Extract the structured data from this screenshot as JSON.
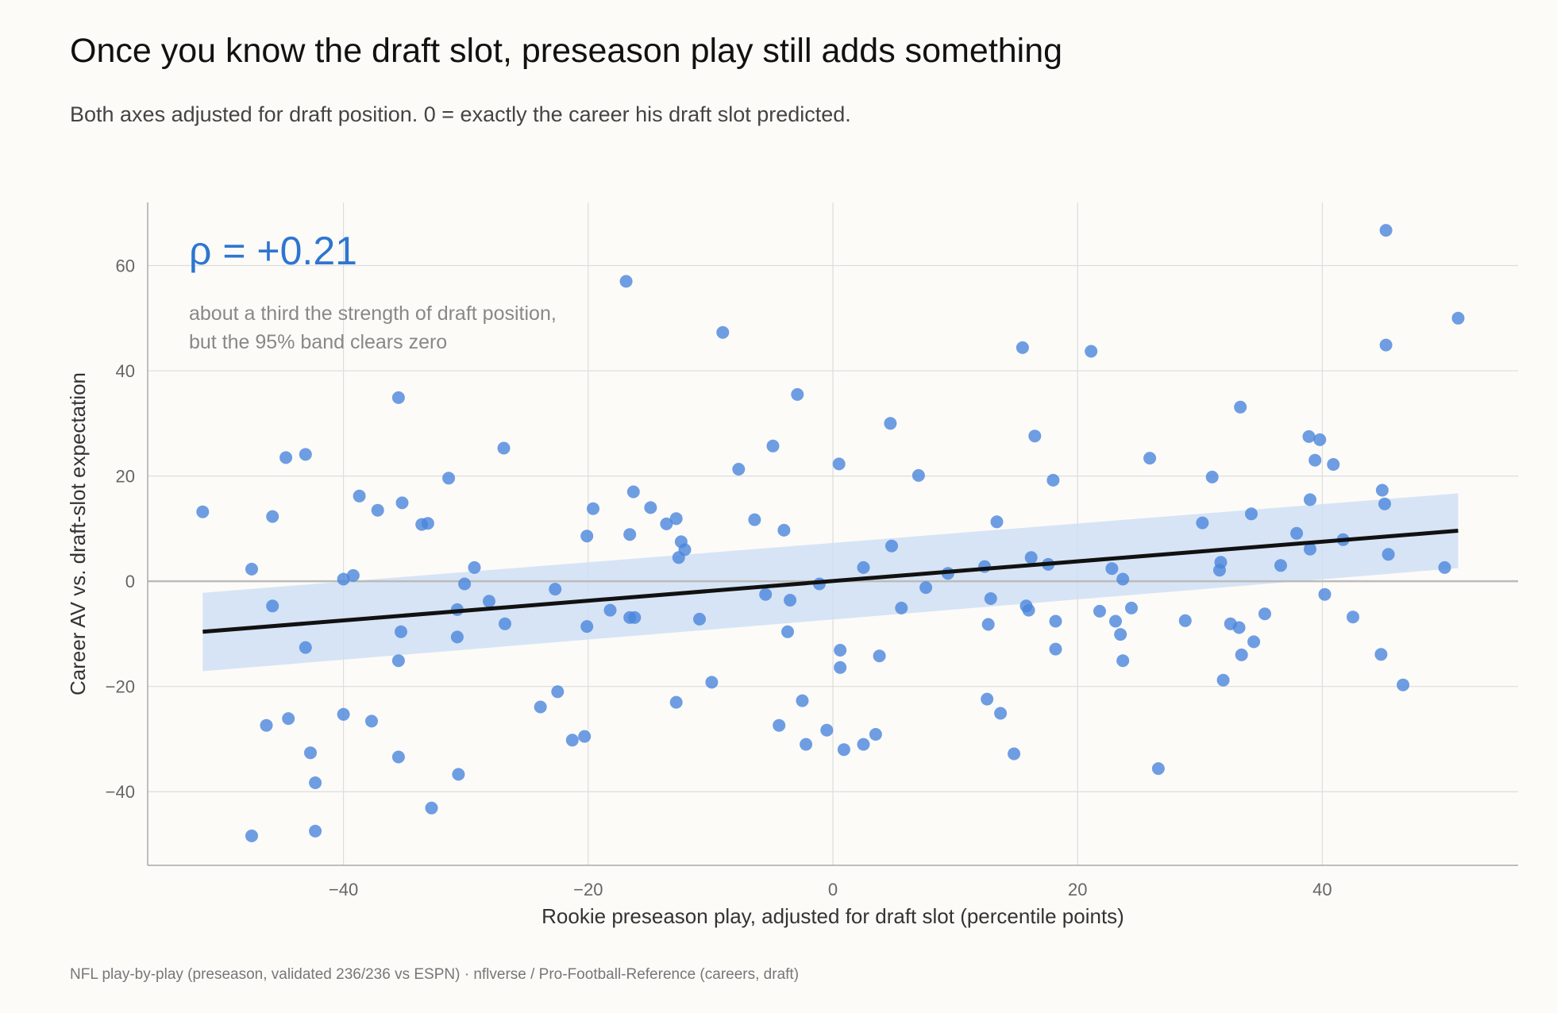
{
  "title": "Once you know the draft slot, preseason play still adds something",
  "subtitle": "Both axes adjusted for draft position. 0 = exactly the career his draft slot predicted.",
  "footer": "NFL play-by-play (preseason, validated 236/236 vs ESPN)  ·  nflverse / Pro-Football-Reference (careers, draft)",
  "colors": {
    "point": "#4a86dc",
    "band": "#cddff4",
    "fit_line": "#111111",
    "accent_text": "#2e75d0",
    "grid": "#dddddd",
    "zero_line": "#bbbbbb"
  },
  "chart_data": {
    "type": "scatter",
    "xlabel": "Rookie preseason play, adjusted for draft slot (percentile points)",
    "ylabel": "Career AV vs. draft-slot expectation",
    "xlim": [
      -56,
      56
    ],
    "ylim": [
      -54,
      72
    ],
    "xticks": [
      -40,
      -20,
      0,
      20,
      40
    ],
    "yticks": [
      -40,
      -20,
      0,
      20,
      40,
      60
    ],
    "xtick_labels": [
      "−40",
      "−20",
      "0",
      "20",
      "40"
    ],
    "ytick_labels": [
      "−40",
      "−20",
      "0",
      "20",
      "40",
      "60"
    ],
    "grid": true,
    "annotation": {
      "stat": "ρ = +0.21",
      "note_line1": "about a third the strength of draft position,",
      "note_line2": "but the 95% band clears zero"
    },
    "fit": {
      "x": [
        -51.5,
        51.1
      ],
      "y": [
        -9.6,
        9.6
      ],
      "band_upper": [
        -2.2,
        16.7
      ],
      "band_lower": [
        -17.1,
        2.5
      ]
    },
    "points": [
      [
        -51.5,
        13.2
      ],
      [
        -47.5,
        2.3
      ],
      [
        -47.5,
        -48.4
      ],
      [
        -46.3,
        -27.4
      ],
      [
        -45.8,
        12.3
      ],
      [
        -45.8,
        -4.7
      ],
      [
        -44.7,
        23.5
      ],
      [
        -44.5,
        -26.1
      ],
      [
        -43.1,
        24.1
      ],
      [
        -43.1,
        -12.6
      ],
      [
        -42.7,
        -32.6
      ],
      [
        -42.3,
        -38.3
      ],
      [
        -42.3,
        -47.5
      ],
      [
        -40.0,
        0.4
      ],
      [
        -40.0,
        -25.3
      ],
      [
        -39.2,
        1.1
      ],
      [
        -38.7,
        16.2
      ],
      [
        -37.7,
        -26.6
      ],
      [
        -37.2,
        13.5
      ],
      [
        -35.5,
        34.9
      ],
      [
        -35.5,
        -15.1
      ],
      [
        -35.5,
        -33.4
      ],
      [
        -35.3,
        -9.6
      ],
      [
        -35.2,
        14.9
      ],
      [
        -33.6,
        10.8
      ],
      [
        -33.1,
        11.0
      ],
      [
        -32.8,
        -43.1
      ],
      [
        -31.4,
        19.6
      ],
      [
        -30.7,
        -5.4
      ],
      [
        -30.7,
        -10.6
      ],
      [
        -30.6,
        -36.7
      ],
      [
        -30.1,
        -0.5
      ],
      [
        -29.3,
        2.6
      ],
      [
        -28.1,
        -3.8
      ],
      [
        -26.9,
        25.3
      ],
      [
        -26.8,
        -8.1
      ],
      [
        -23.9,
        -23.9
      ],
      [
        -22.7,
        -1.5
      ],
      [
        -22.5,
        -21.0
      ],
      [
        -21.3,
        -30.2
      ],
      [
        -20.3,
        -29.5
      ],
      [
        -20.1,
        8.6
      ],
      [
        -20.1,
        -8.6
      ],
      [
        -19.6,
        13.8
      ],
      [
        -18.2,
        -5.5
      ],
      [
        -16.9,
        57.0
      ],
      [
        -16.6,
        8.9
      ],
      [
        -16.6,
        -6.9
      ],
      [
        -16.3,
        17.0
      ],
      [
        -16.2,
        -6.9
      ],
      [
        -14.9,
        14.0
      ],
      [
        -13.6,
        10.9
      ],
      [
        -12.8,
        11.9
      ],
      [
        -12.8,
        -23.0
      ],
      [
        -12.6,
        4.5
      ],
      [
        -12.4,
        7.5
      ],
      [
        -12.1,
        6.0
      ],
      [
        -10.9,
        -7.2
      ],
      [
        -9.9,
        -19.2
      ],
      [
        -9.0,
        47.3
      ],
      [
        -7.7,
        21.3
      ],
      [
        -6.4,
        11.7
      ],
      [
        -5.5,
        -2.5
      ],
      [
        -4.9,
        25.7
      ],
      [
        -4.4,
        -27.4
      ],
      [
        -4.0,
        9.7
      ],
      [
        -3.7,
        -9.6
      ],
      [
        -3.5,
        -3.6
      ],
      [
        -2.9,
        35.5
      ],
      [
        -2.5,
        -22.7
      ],
      [
        -2.2,
        -31.0
      ],
      [
        -1.1,
        -0.5
      ],
      [
        -0.5,
        -28.3
      ],
      [
        0.5,
        22.3
      ],
      [
        0.6,
        -13.1
      ],
      [
        0.6,
        -16.4
      ],
      [
        0.9,
        -32.0
      ],
      [
        2.5,
        2.6
      ],
      [
        2.5,
        -31.0
      ],
      [
        3.5,
        -29.1
      ],
      [
        3.8,
        -14.2
      ],
      [
        4.7,
        30.0
      ],
      [
        4.8,
        6.7
      ],
      [
        5.6,
        -5.1
      ],
      [
        7.0,
        20.1
      ],
      [
        7.6,
        -1.2
      ],
      [
        9.4,
        1.5
      ],
      [
        12.4,
        2.8
      ],
      [
        12.6,
        -22.4
      ],
      [
        12.7,
        -8.2
      ],
      [
        12.9,
        -3.3
      ],
      [
        13.4,
        11.3
      ],
      [
        13.7,
        -25.1
      ],
      [
        14.8,
        -32.8
      ],
      [
        15.5,
        44.4
      ],
      [
        15.8,
        -4.7
      ],
      [
        16.0,
        -5.5
      ],
      [
        16.2,
        4.5
      ],
      [
        16.5,
        27.6
      ],
      [
        17.6,
        3.2
      ],
      [
        18.0,
        19.2
      ],
      [
        18.2,
        -7.6
      ],
      [
        18.2,
        -12.9
      ],
      [
        21.1,
        43.7
      ],
      [
        21.8,
        -5.7
      ],
      [
        22.8,
        2.4
      ],
      [
        23.1,
        -7.6
      ],
      [
        23.5,
        -10.1
      ],
      [
        23.7,
        0.4
      ],
      [
        23.7,
        -15.1
      ],
      [
        24.4,
        -5.1
      ],
      [
        25.9,
        23.4
      ],
      [
        26.6,
        -35.6
      ],
      [
        28.8,
        -7.5
      ],
      [
        30.2,
        11.1
      ],
      [
        31.0,
        19.8
      ],
      [
        31.6,
        2.1
      ],
      [
        31.7,
        3.6
      ],
      [
        31.9,
        -18.8
      ],
      [
        32.5,
        -8.1
      ],
      [
        33.2,
        -8.8
      ],
      [
        33.3,
        33.1
      ],
      [
        33.4,
        -14.0
      ],
      [
        34.2,
        12.8
      ],
      [
        34.4,
        -11.5
      ],
      [
        35.3,
        -6.2
      ],
      [
        36.6,
        3.0
      ],
      [
        37.9,
        9.1
      ],
      [
        38.9,
        27.5
      ],
      [
        39.0,
        15.5
      ],
      [
        39.0,
        6.1
      ],
      [
        39.4,
        23.0
      ],
      [
        39.8,
        26.9
      ],
      [
        40.2,
        -2.5
      ],
      [
        40.9,
        22.2
      ],
      [
        41.7,
        7.9
      ],
      [
        42.5,
        -6.8
      ],
      [
        44.8,
        -13.9
      ],
      [
        44.9,
        17.3
      ],
      [
        45.1,
        14.7
      ],
      [
        45.2,
        66.7
      ],
      [
        45.2,
        44.9
      ],
      [
        45.4,
        5.1
      ],
      [
        46.6,
        -19.7
      ],
      [
        50.0,
        2.6
      ],
      [
        51.1,
        50.0
      ]
    ]
  }
}
